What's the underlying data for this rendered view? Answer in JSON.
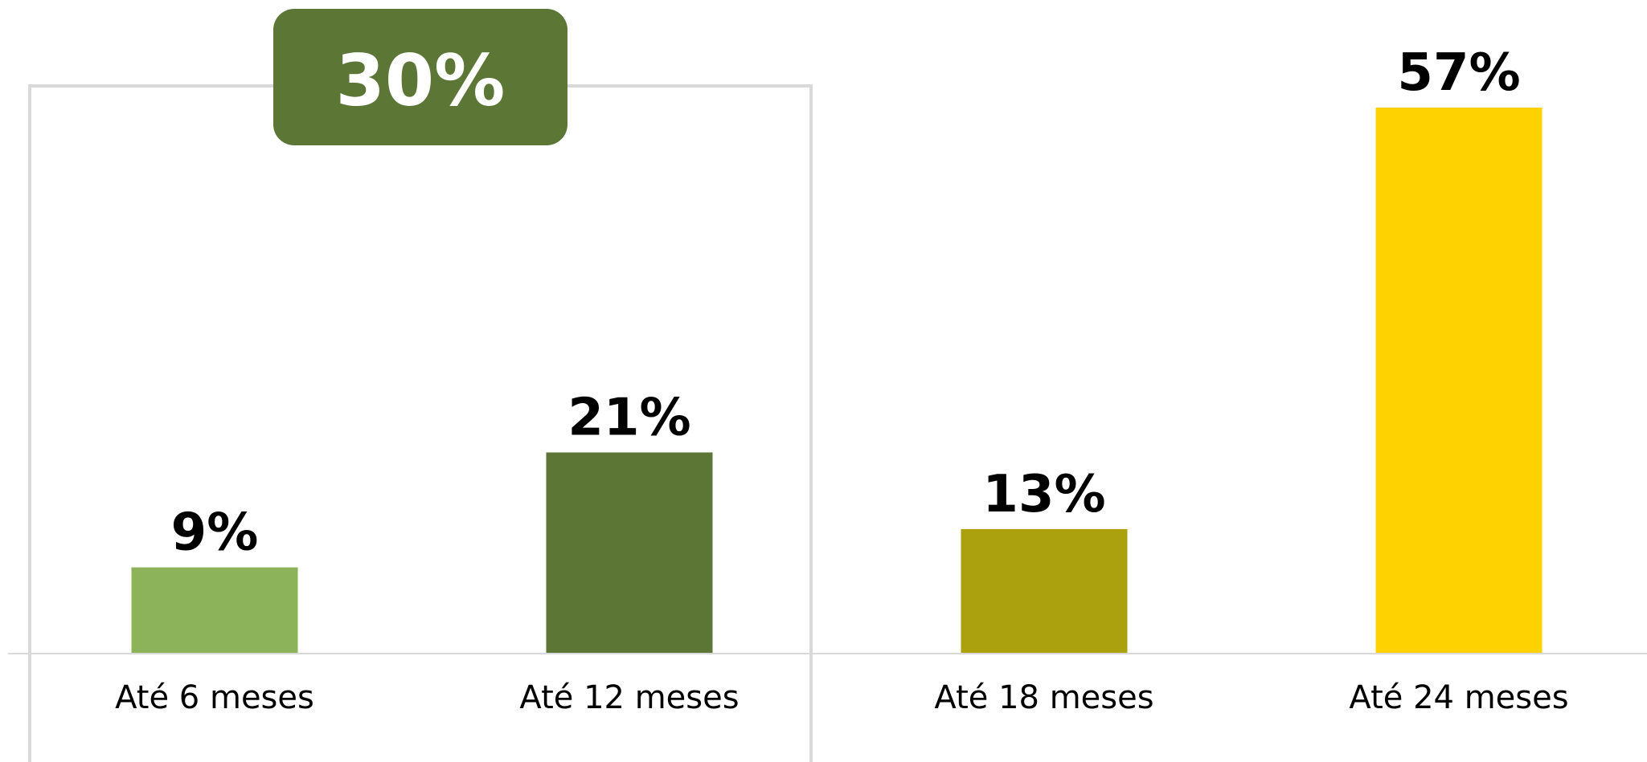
{
  "chart_data": {
    "type": "bar",
    "categories": [
      "Até 6 meses",
      "Até 12 meses",
      "Até 18 meses",
      "Até 24 meses"
    ],
    "values": [
      9,
      21,
      13,
      57
    ],
    "value_labels": [
      "9%",
      "21%",
      "13%",
      "57%"
    ],
    "colors": [
      "#8db35a",
      "#5c7636",
      "#aba10e",
      "#fdd200"
    ],
    "ylim": [
      0,
      60
    ],
    "grid": false,
    "group_callout": {
      "label": "30%",
      "covers": [
        "Até 6 meses",
        "Até 12 meses"
      ],
      "color": "#5c7636",
      "frame_color": "#d9d9d9"
    },
    "title": "",
    "xlabel": "",
    "ylabel": ""
  }
}
